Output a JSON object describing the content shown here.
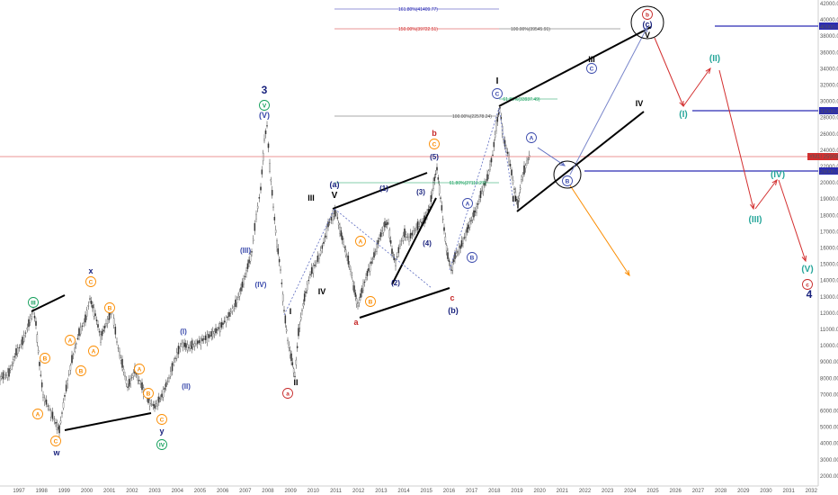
{
  "chart_data": {
    "type": "candlestick",
    "instrument": "YM1!",
    "x_axis": {
      "type": "time",
      "ticks": [
        "1997",
        "1998",
        "1999",
        "2000",
        "2001",
        "2002",
        "2003",
        "2004",
        "2005",
        "2006",
        "2007",
        "2008",
        "2009",
        "2010",
        "2011",
        "2012",
        "2013",
        "2014",
        "2015",
        "2016",
        "2017",
        "2018",
        "2019",
        "2020",
        "2021",
        "2022",
        "2023",
        "2024",
        "2025",
        "2026",
        "2027",
        "2028",
        "2029",
        "2030",
        "2031",
        "2032"
      ]
    },
    "y_axis": {
      "scale": "log",
      "ticks": [
        "42000.00",
        "40000.00",
        "38000.00",
        "36000.00",
        "34000.00",
        "32000.00",
        "30000.00",
        "28000.00",
        "26000.00",
        "24000.00",
        "22000.00",
        "20000.00",
        "19000.00",
        "18000.00",
        "17000.00",
        "16000.00",
        "15000.00",
        "14000.00",
        "13000.00",
        "12000.00",
        "11000.00",
        "10000.00",
        "9000.00",
        "8000.00",
        "7000.00",
        "6000.00",
        "5000.00",
        "4000.00",
        "3000.00",
        "2000.00"
      ]
    },
    "price_label": "YM1! 25909.40",
    "h_levels": [
      {
        "label": "40000.00",
        "color": "#2b2bb3"
      },
      {
        "label": "33000.00",
        "color": "#2b2bb3"
      },
      {
        "label": "28000.00",
        "color": "#2b2bb3"
      }
    ],
    "fib_levels": [
      {
        "text": "161.80%(41409.77)",
        "color": "#2b2bb3"
      },
      {
        "text": "150.00%(39722.51)",
        "color": "#d32f2f"
      },
      {
        "text": "100.00%(39545.91)",
        "color": "#555555"
      },
      {
        "text": "100.00%(22578.24)",
        "color": "#555555"
      },
      {
        "text": "61.80%(27119.27)",
        "color": "#0f9d58"
      },
      {
        "text": "61.80%(33937.49)",
        "color": "#0f9d58"
      }
    ],
    "wave_labels": [
      "w",
      "x",
      "y",
      "a",
      "b",
      "c",
      "ⓐ",
      "ⓑ",
      "ⓒ",
      "Ⓐ",
      "Ⓑ",
      "Ⓒ",
      "(a)",
      "(b)",
      "(c)",
      "(1)",
      "(2)",
      "(3)",
      "(4)",
      "(5)",
      "(I)",
      "(II)",
      "(III)",
      "(IV)",
      "(V)",
      "I",
      "II",
      "III",
      "IV",
      "V",
      "3",
      "4"
    ]
  }
}
